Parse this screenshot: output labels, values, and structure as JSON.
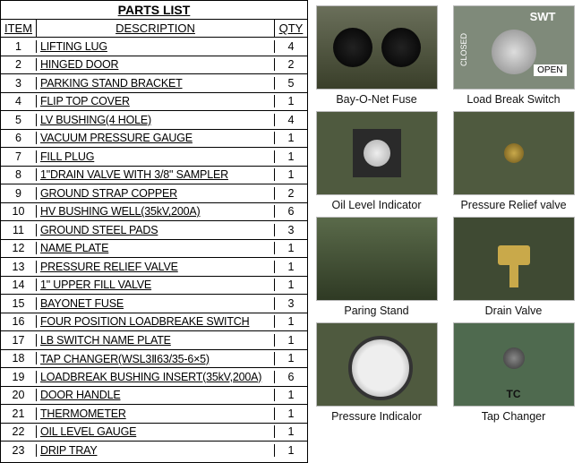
{
  "table": {
    "title": "PARTS LIST",
    "headers": {
      "item": "ITEM",
      "desc": "DESCRIPTION",
      "qty": "QTY"
    },
    "rows": [
      {
        "item": "1",
        "desc": "LIFTING LUG",
        "qty": "4"
      },
      {
        "item": "2",
        "desc": "HINGED DOOR",
        "qty": "2"
      },
      {
        "item": "3",
        "desc": "PARKING STAND BRACKET",
        "qty": "5"
      },
      {
        "item": "4",
        "desc": "FLIP TOP COVER",
        "qty": "1"
      },
      {
        "item": "5",
        "desc": "LV BUSHING(4 HOLE)",
        "qty": "4"
      },
      {
        "item": "6",
        "desc": "VACUUM PRESSURE GAUGE",
        "qty": "1"
      },
      {
        "item": "7",
        "desc": "FILL PLUG",
        "qty": "1"
      },
      {
        "item": "8",
        "desc": "1\"DRAIN VALVE WITH 3/8\" SAMPLER",
        "qty": "1"
      },
      {
        "item": "9",
        "desc": "GROUND STRAP COPPER",
        "qty": "2"
      },
      {
        "item": "10",
        "desc": "HV BUSHING WELL(35kV,200A)",
        "qty": "6"
      },
      {
        "item": "11",
        "desc": "GROUND STEEL PADS",
        "qty": "3"
      },
      {
        "item": "12",
        "desc": "NAME PLATE",
        "qty": "1"
      },
      {
        "item": "13",
        "desc": "PRESSURE RELIEF VALVE",
        "qty": "1"
      },
      {
        "item": "14",
        "desc": "1\" UPPER FILL VALVE",
        "qty": "1"
      },
      {
        "item": "15",
        "desc": "BAYONET FUSE",
        "qty": "3"
      },
      {
        "item": "16",
        "desc": "FOUR POSITION LOADBREAKE SWITCH",
        "qty": "1"
      },
      {
        "item": "17",
        "desc": "LB SWITCH NAME PLATE",
        "qty": "1"
      },
      {
        "item": "18",
        "desc": "TAP CHANGER(WSL3Ⅱ63/35-6×5)",
        "qty": "1"
      },
      {
        "item": "19",
        "desc": "LOADBREAK BUSHING INSERT(35kV,200A)",
        "qty": "6"
      },
      {
        "item": "20",
        "desc": "DOOR HANDLE",
        "qty": "1"
      },
      {
        "item": "21",
        "desc": "THERMOMETER",
        "qty": "1"
      },
      {
        "item": "22",
        "desc": "OIL LEVEL GAUGE",
        "qty": "1"
      },
      {
        "item": "23",
        "desc": "DRIP TRAY",
        "qty": "1"
      }
    ]
  },
  "gallery": {
    "items": [
      {
        "label": "Bay-O-Net Fuse",
        "cls": "bayonet",
        "overlay": null
      },
      {
        "label": "Load Break Switch",
        "cls": "lbs",
        "overlay": {
          "swt": "SWT",
          "closed": "CLOSED",
          "open": "OPEN"
        }
      },
      {
        "label": "Oil Level Indicator",
        "cls": "oil",
        "overlay": null
      },
      {
        "label": "Pressure Relief valve",
        "cls": "prv",
        "overlay": null
      },
      {
        "label": "Paring Stand",
        "cls": "stand",
        "overlay": null
      },
      {
        "label": "Drain Valve",
        "cls": "drain",
        "overlay": null
      },
      {
        "label": "Pressure Indicalor",
        "cls": "pind",
        "overlay": null
      },
      {
        "label": "Tap Changer",
        "cls": "tap",
        "overlay": {
          "tc": "TC"
        }
      }
    ]
  },
  "colors": {
    "border": "#000000",
    "text": "#000000",
    "photo_bg": "#4a5a3a"
  }
}
